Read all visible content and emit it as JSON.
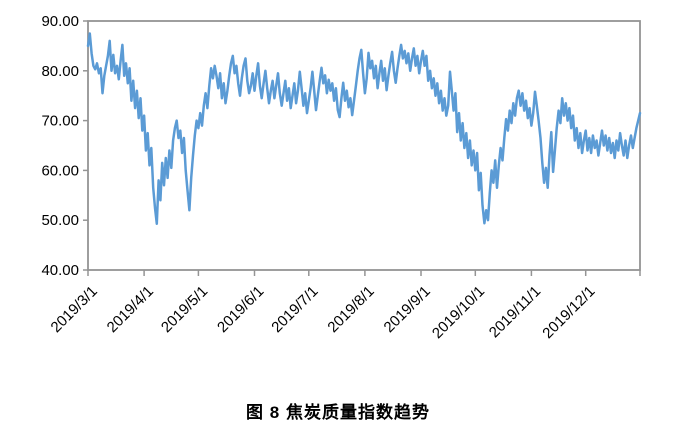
{
  "figure": {
    "caption": "图 8  焦炭质量指数趋势"
  },
  "chart_data": {
    "type": "line",
    "title": "图 8  焦炭质量指数趋势",
    "grid": false,
    "legend": "none",
    "background_color": "#FFFFFF",
    "axis_color": "#949494",
    "text_color": "#000000",
    "y_axis": {
      "min": 40,
      "max": 90,
      "tick_step": 10,
      "tick_labels": [
        "90.00",
        "80.00",
        "70.00",
        "60.00",
        "50.00",
        "40.00"
      ]
    },
    "x_axis": {
      "start": "2019/3/1",
      "end": "2019/12/31",
      "tick_labels": [
        "2019/3/1",
        "2019/4/1",
        "2019/5/1",
        "2019/6/1",
        "2019/7/1",
        "2019/8/1",
        "2019/9/1",
        "2019/10/1",
        "2019/11/1",
        "2019/12/1"
      ],
      "label_rotation_deg": 45
    },
    "series": [
      {
        "name": "焦炭质量指数",
        "color": "#5B9BD5",
        "frequency": "daily",
        "start_date": "2019/3/1",
        "month_lengths": [
          31,
          30,
          31,
          30,
          31,
          31,
          30,
          31,
          30,
          31
        ],
        "values": [
          85.0,
          87.5,
          83.5,
          81.0,
          80.3,
          81.5,
          79.5,
          80.5,
          75.5,
          79.0,
          81.0,
          83.0,
          86.0,
          80.0,
          83.2,
          79.5,
          81.0,
          78.3,
          82.0,
          85.2,
          79.0,
          81.5,
          77.5,
          80.5,
          74.0,
          78.0,
          72.5,
          76.0,
          70.5,
          74.5,
          68.0,
          71.0,
          64.0,
          67.5,
          61.0,
          64.5,
          56.5,
          52.5,
          49.3,
          58.0,
          54.0,
          61.5,
          57.0,
          62.5,
          58.5,
          64.0,
          60.5,
          66.0,
          68.5,
          70.0,
          66.5,
          68.0,
          63.5,
          66.5,
          60.0,
          56.0,
          52.0,
          58.5,
          63.0,
          67.0,
          70.0,
          68.5,
          71.5,
          69.0,
          73.0,
          75.5,
          72.5,
          77.0,
          80.5,
          78.5,
          81.0,
          79.0,
          76.5,
          79.5,
          74.5,
          77.5,
          73.5,
          76.0,
          79.0,
          81.5,
          83.0,
          79.5,
          81.0,
          77.5,
          75.0,
          78.5,
          81.0,
          82.5,
          78.0,
          75.5,
          77.0,
          79.5,
          76.0,
          79.0,
          81.5,
          77.0,
          74.5,
          77.5,
          80.0,
          76.5,
          73.5,
          76.0,
          78.0,
          74.5,
          77.0,
          79.5,
          75.5,
          73.0,
          75.5,
          78.0,
          74.0,
          76.5,
          72.5,
          75.0,
          77.5,
          73.5,
          76.0,
          79.8,
          76.5,
          73.0,
          75.5,
          71.5,
          74.0,
          76.5,
          79.8,
          76.0,
          72.1,
          75.0,
          78.0,
          80.6,
          77.5,
          79.1,
          75.5,
          78.2,
          76.0,
          77.5,
          74.0,
          76.5,
          72.1,
          70.7,
          74.5,
          77.6,
          74.0,
          76.0,
          72.7,
          74.5,
          71.1,
          74.0,
          77.0,
          80.0,
          82.5,
          84.2,
          79.5,
          75.5,
          78.5,
          83.6,
          80.5,
          82.0,
          78.5,
          81.0,
          76.5,
          79.5,
          82.0,
          78.0,
          80.5,
          76.1,
          79.0,
          81.5,
          83.8,
          80.0,
          77.6,
          80.5,
          83.0,
          85.2,
          82.5,
          84.0,
          81.5,
          83.5,
          80.0,
          82.5,
          84.5,
          81.0,
          83.0,
          79.5,
          82.0,
          84.0,
          81.0,
          83.0,
          78.0,
          80.0,
          76.5,
          78.5,
          75.0,
          77.5,
          73.5,
          76.0,
          72.0,
          74.5,
          71.0,
          73.0,
          79.8,
          76.0,
          72.0,
          75.5,
          67.7,
          71.5,
          66.0,
          69.5,
          64.5,
          67.5,
          62.5,
          66.0,
          61.0,
          64.0,
          60.0,
          63.5,
          56.0,
          59.5,
          53.0,
          49.4,
          52.0,
          50.0,
          55.5,
          60.0,
          57.5,
          62.0,
          56.5,
          61.0,
          64.5,
          62.0,
          66.5,
          70.3,
          68.0,
          72.0,
          69.5,
          73.5,
          71.0,
          74.5,
          76.0,
          73.0,
          75.5,
          72.0,
          74.0,
          70.5,
          72.5,
          69.0,
          71.5,
          75.8,
          73.0,
          70.0,
          66.5,
          61.5,
          57.5,
          60.5,
          56.5,
          63.0,
          67.7,
          59.7,
          64.0,
          68.5,
          72.0,
          69.5,
          74.5,
          71.0,
          73.5,
          70.0,
          72.5,
          68.5,
          71.0,
          66.0,
          68.5,
          64.5,
          67.5,
          63.5,
          66.0,
          68.0,
          64.0,
          66.5,
          63.5,
          67.0,
          64.5,
          66.0,
          63.0,
          65.5,
          68.0,
          65.0,
          67.0,
          64.0,
          66.5,
          63.5,
          65.5,
          62.5,
          66.0,
          64.0,
          67.5,
          65.0,
          63.0,
          66.0,
          62.5,
          65.0,
          67.0,
          64.5,
          66.5,
          68.5,
          70.0,
          71.5
        ]
      }
    ]
  }
}
